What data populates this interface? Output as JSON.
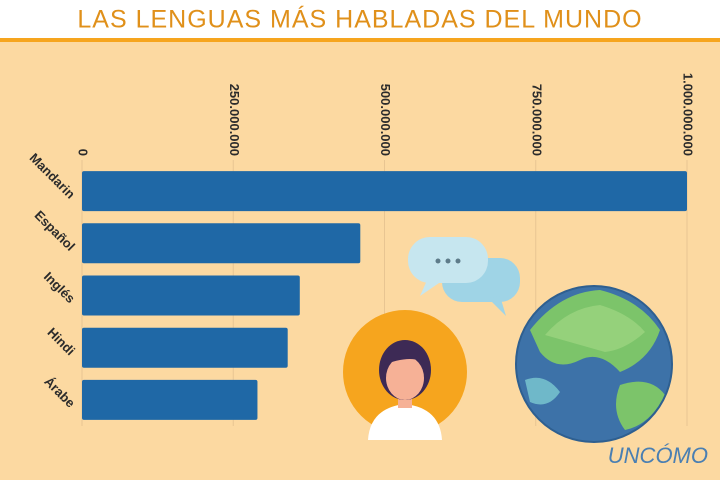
{
  "chart_data": {
    "type": "hbar",
    "title": "LAS LENGUAS MÁS HABLADAS DEL MUNDO",
    "categories": [
      "Mandarin",
      "Español",
      "Inglés",
      "Hindi",
      "Árabe"
    ],
    "values": [
      1000000000,
      460000000,
      360000000,
      340000000,
      290000000
    ],
    "color": "#1f68a6",
    "xlim": [
      0,
      1000000000
    ],
    "xticks": [
      0,
      {
        "value": 250000000,
        "label": "250.000.000"
      },
      {
        "value": 500000000,
        "label": "500.000.000"
      },
      {
        "value": 750000000,
        "label": "750.000.000"
      },
      {
        "value": 1000000000,
        "label": "1.000.000.000"
      }
    ],
    "grid": true
  },
  "logo": "UNCÓMO"
}
